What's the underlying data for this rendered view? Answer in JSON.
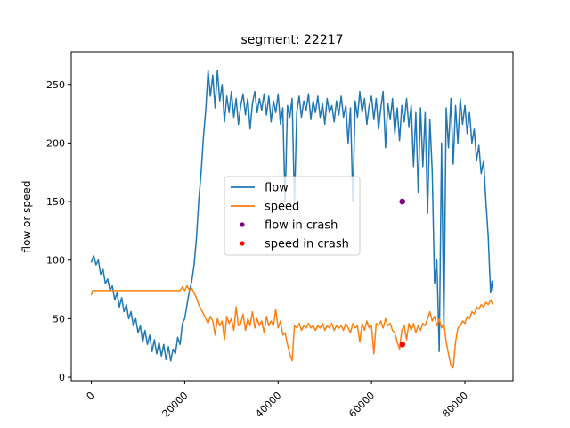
{
  "chart_data": {
    "type": "line",
    "title": "segment: 22217",
    "xlabel": "",
    "ylabel": "flow or speed",
    "xlim": [
      -4300,
      90300
    ],
    "ylim": [
      -3,
      278
    ],
    "xticks": [
      0,
      20000,
      40000,
      60000,
      80000
    ],
    "xtick_labels": [
      "0",
      "20000",
      "40000",
      "60000",
      "80000"
    ],
    "yticks": [
      0,
      50,
      100,
      150,
      200,
      250
    ],
    "ytick_labels": [
      "0",
      "50",
      "100",
      "150",
      "200",
      "250"
    ],
    "grid": false,
    "legend_position": "center",
    "series": [
      {
        "name": "flow",
        "color": "#1f77b4",
        "points": [
          [
            0,
            98
          ],
          [
            500,
            104
          ],
          [
            1000,
            96
          ],
          [
            1500,
            100
          ],
          [
            2000,
            88
          ],
          [
            2500,
            92
          ],
          [
            3000,
            80
          ],
          [
            3500,
            84
          ],
          [
            4000,
            74
          ],
          [
            4500,
            78
          ],
          [
            5000,
            66
          ],
          [
            5500,
            72
          ],
          [
            6000,
            60
          ],
          [
            6500,
            68
          ],
          [
            7000,
            56
          ],
          [
            7500,
            62
          ],
          [
            8000,
            50
          ],
          [
            8500,
            56
          ],
          [
            9000,
            44
          ],
          [
            9500,
            50
          ],
          [
            10000,
            38
          ],
          [
            10500,
            44
          ],
          [
            11000,
            30
          ],
          [
            11500,
            40
          ],
          [
            12000,
            28
          ],
          [
            12500,
            36
          ],
          [
            13000,
            22
          ],
          [
            13500,
            32
          ],
          [
            14000,
            20
          ],
          [
            14500,
            30
          ],
          [
            15000,
            18
          ],
          [
            15500,
            28
          ],
          [
            16000,
            15
          ],
          [
            16500,
            26
          ],
          [
            17000,
            14
          ],
          [
            17500,
            24
          ],
          [
            18000,
            20
          ],
          [
            18500,
            34
          ],
          [
            19000,
            28
          ],
          [
            19500,
            46
          ],
          [
            20000,
            50
          ],
          [
            20500,
            62
          ],
          [
            21000,
            74
          ],
          [
            21500,
            82
          ],
          [
            22000,
            96
          ],
          [
            22500,
            118
          ],
          [
            23000,
            150
          ],
          [
            23500,
            175
          ],
          [
            24000,
            205
          ],
          [
            24500,
            228
          ],
          [
            25000,
            262
          ],
          [
            25500,
            240
          ],
          [
            26000,
            258
          ],
          [
            26500,
            230
          ],
          [
            27000,
            262
          ],
          [
            27500,
            236
          ],
          [
            28000,
            250
          ],
          [
            28500,
            218
          ],
          [
            29000,
            240
          ],
          [
            29500,
            226
          ],
          [
            30000,
            244
          ],
          [
            30500,
            222
          ],
          [
            31000,
            238
          ],
          [
            31500,
            216
          ],
          [
            32000,
            232
          ],
          [
            32500,
            242
          ],
          [
            33000,
            224
          ],
          [
            33500,
            238
          ],
          [
            34000,
            212
          ],
          [
            34500,
            234
          ],
          [
            35000,
            244
          ],
          [
            35500,
            226
          ],
          [
            36000,
            238
          ],
          [
            36500,
            228
          ],
          [
            37000,
            242
          ],
          [
            37500,
            224
          ],
          [
            38000,
            240
          ],
          [
            38500,
            218
          ],
          [
            39000,
            236
          ],
          [
            39500,
            226
          ],
          [
            40000,
            242
          ],
          [
            40500,
            216
          ],
          [
            41000,
            230
          ],
          [
            41500,
            150
          ],
          [
            42000,
            232
          ],
          [
            42500,
            222
          ],
          [
            43000,
            238
          ],
          [
            43500,
            148
          ],
          [
            44000,
            226
          ],
          [
            44500,
            240
          ],
          [
            45000,
            222
          ],
          [
            45500,
            236
          ],
          [
            46000,
            228
          ],
          [
            46500,
            242
          ],
          [
            47000,
            220
          ],
          [
            47500,
            236
          ],
          [
            48000,
            226
          ],
          [
            48500,
            240
          ],
          [
            49000,
            222
          ],
          [
            49500,
            234
          ],
          [
            50000,
            216
          ],
          [
            50500,
            238
          ],
          [
            51000,
            226
          ],
          [
            51500,
            232
          ],
          [
            52000,
            218
          ],
          [
            52500,
            236
          ],
          [
            53000,
            224
          ],
          [
            53500,
            240
          ],
          [
            54000,
            222
          ],
          [
            54500,
            232
          ],
          [
            55000,
            200
          ],
          [
            55500,
            230
          ],
          [
            56000,
            150
          ],
          [
            56500,
            236
          ],
          [
            57000,
            222
          ],
          [
            57500,
            244
          ],
          [
            58000,
            226
          ],
          [
            58500,
            238
          ],
          [
            59000,
            216
          ],
          [
            59500,
            232
          ],
          [
            60000,
            240
          ],
          [
            60500,
            220
          ],
          [
            61000,
            238
          ],
          [
            61500,
            212
          ],
          [
            62000,
            230
          ],
          [
            62500,
            244
          ],
          [
            63000,
            196
          ],
          [
            63500,
            234
          ],
          [
            64000,
            220
          ],
          [
            64500,
            238
          ],
          [
            65000,
            208
          ],
          [
            65500,
            230
          ],
          [
            66000,
            202
          ],
          [
            66500,
            232
          ],
          [
            67000,
            218
          ],
          [
            67500,
            238
          ],
          [
            68000,
            214
          ],
          [
            68500,
            232
          ],
          [
            69000,
            180
          ],
          [
            69500,
            226
          ],
          [
            70000,
            158
          ],
          [
            70500,
            230
          ],
          [
            71000,
            180
          ],
          [
            71500,
            226
          ],
          [
            72000,
            140
          ],
          [
            72500,
            220
          ],
          [
            73000,
            176
          ],
          [
            73500,
            80
          ],
          [
            74000,
            100
          ],
          [
            74500,
            22
          ],
          [
            75000,
            200
          ],
          [
            75500,
            40
          ],
          [
            76000,
            230
          ],
          [
            76500,
            196
          ],
          [
            77000,
            238
          ],
          [
            77500,
            182
          ],
          [
            78000,
            232
          ],
          [
            78500,
            200
          ],
          [
            79000,
            238
          ],
          [
            79500,
            216
          ],
          [
            80000,
            232
          ],
          [
            80500,
            208
          ],
          [
            81000,
            226
          ],
          [
            81500,
            200
          ],
          [
            82000,
            212
          ],
          [
            82500,
            185
          ],
          [
            83000,
            198
          ],
          [
            83500,
            174
          ],
          [
            84000,
            185
          ],
          [
            84500,
            150
          ],
          [
            85000,
            120
          ],
          [
            85500,
            72
          ],
          [
            85800,
            82
          ],
          [
            86000,
            74
          ]
        ]
      },
      {
        "name": "speed",
        "color": "#ff7f0e",
        "points": [
          [
            0,
            70
          ],
          [
            300,
            74
          ],
          [
            1000,
            74
          ],
          [
            5000,
            74
          ],
          [
            10000,
            74
          ],
          [
            15000,
            74
          ],
          [
            19000,
            74
          ],
          [
            19500,
            77
          ],
          [
            20000,
            74
          ],
          [
            20500,
            78
          ],
          [
            21000,
            74
          ],
          [
            21500,
            76
          ],
          [
            22000,
            72
          ],
          [
            22500,
            68
          ],
          [
            23000,
            62
          ],
          [
            23500,
            58
          ],
          [
            24000,
            54
          ],
          [
            24500,
            50
          ],
          [
            25000,
            46
          ],
          [
            25500,
            52
          ],
          [
            26000,
            48
          ],
          [
            26500,
            36
          ],
          [
            27000,
            50
          ],
          [
            27500,
            44
          ],
          [
            28000,
            48
          ],
          [
            28500,
            32
          ],
          [
            29000,
            52
          ],
          [
            29500,
            46
          ],
          [
            30000,
            50
          ],
          [
            30500,
            40
          ],
          [
            31000,
            60
          ],
          [
            31500,
            44
          ],
          [
            32000,
            46
          ],
          [
            32500,
            54
          ],
          [
            33000,
            40
          ],
          [
            33500,
            50
          ],
          [
            34000,
            44
          ],
          [
            34500,
            56
          ],
          [
            35000,
            42
          ],
          [
            35500,
            50
          ],
          [
            36000,
            44
          ],
          [
            36500,
            48
          ],
          [
            37000,
            38
          ],
          [
            37500,
            52
          ],
          [
            38000,
            44
          ],
          [
            38500,
            48
          ],
          [
            39000,
            44
          ],
          [
            39500,
            58
          ],
          [
            40000,
            42
          ],
          [
            40500,
            48
          ],
          [
            41000,
            36
          ],
          [
            41500,
            38
          ],
          [
            42000,
            28
          ],
          [
            42500,
            20
          ],
          [
            43000,
            14
          ],
          [
            43500,
            44
          ],
          [
            44000,
            42
          ],
          [
            44500,
            46
          ],
          [
            45000,
            40
          ],
          [
            45500,
            44
          ],
          [
            46000,
            42
          ],
          [
            46500,
            46
          ],
          [
            47000,
            42
          ],
          [
            47500,
            44
          ],
          [
            48000,
            40
          ],
          [
            48500,
            44
          ],
          [
            49000,
            42
          ],
          [
            49500,
            46
          ],
          [
            50000,
            40
          ],
          [
            50500,
            44
          ],
          [
            51000,
            42
          ],
          [
            51500,
            46
          ],
          [
            52000,
            40
          ],
          [
            52500,
            44
          ],
          [
            53000,
            42
          ],
          [
            53500,
            44
          ],
          [
            54000,
            40
          ],
          [
            54500,
            46
          ],
          [
            55000,
            42
          ],
          [
            55500,
            38
          ],
          [
            56000,
            46
          ],
          [
            56500,
            42
          ],
          [
            57000,
            44
          ],
          [
            57500,
            30
          ],
          [
            58000,
            46
          ],
          [
            58500,
            40
          ],
          [
            59000,
            48
          ],
          [
            59500,
            42
          ],
          [
            60000,
            44
          ],
          [
            60500,
            20
          ],
          [
            61000,
            46
          ],
          [
            61500,
            44
          ],
          [
            62000,
            48
          ],
          [
            62500,
            42
          ],
          [
            63000,
            50
          ],
          [
            63500,
            44
          ],
          [
            64000,
            46
          ],
          [
            64500,
            40
          ],
          [
            65000,
            38
          ],
          [
            65500,
            30
          ],
          [
            66000,
            24
          ],
          [
            66500,
            40
          ],
          [
            67000,
            44
          ],
          [
            67500,
            32
          ],
          [
            68000,
            46
          ],
          [
            68500,
            40
          ],
          [
            69000,
            46
          ],
          [
            69500,
            38
          ],
          [
            70000,
            44
          ],
          [
            70500,
            40
          ],
          [
            71000,
            46
          ],
          [
            71500,
            44
          ],
          [
            72000,
            50
          ],
          [
            72500,
            56
          ],
          [
            73000,
            48
          ],
          [
            73500,
            52
          ],
          [
            74000,
            44
          ],
          [
            74500,
            50
          ],
          [
            75000,
            42
          ],
          [
            75500,
            46
          ],
          [
            76000,
            30
          ],
          [
            76500,
            20
          ],
          [
            77000,
            10
          ],
          [
            77500,
            8
          ],
          [
            78000,
            30
          ],
          [
            78500,
            42
          ],
          [
            79000,
            44
          ],
          [
            79500,
            48
          ],
          [
            80000,
            46
          ],
          [
            80500,
            52
          ],
          [
            81000,
            50
          ],
          [
            81500,
            56
          ],
          [
            82000,
            54
          ],
          [
            82500,
            60
          ],
          [
            83000,
            58
          ],
          [
            83500,
            62
          ],
          [
            84000,
            60
          ],
          [
            84500,
            64
          ],
          [
            85000,
            62
          ],
          [
            85500,
            66
          ],
          [
            86000,
            62
          ]
        ]
      },
      {
        "name": "flow in crash",
        "color": "#800080",
        "kind": "scatter",
        "points": [
          [
            66600,
            150
          ]
        ]
      },
      {
        "name": "speed in crash",
        "color": "#ff0000",
        "kind": "scatter",
        "points": [
          [
            66600,
            28
          ]
        ]
      }
    ]
  }
}
